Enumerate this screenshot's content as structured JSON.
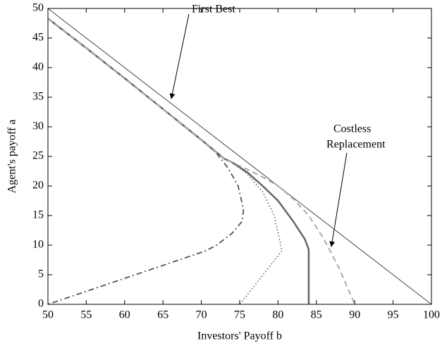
{
  "chart_data": {
    "type": "line",
    "xlabel": "Investors' Payoff b",
    "ylabel": "Agent's payoff a",
    "annotations": [
      "First Best",
      "Costless",
      "Replacement"
    ],
    "xlim": [
      50,
      100
    ],
    "ylim": [
      0,
      50
    ],
    "xticks": [
      50,
      55,
      60,
      65,
      70,
      75,
      80,
      85,
      90,
      95,
      100
    ],
    "yticks": [
      0,
      5,
      10,
      15,
      20,
      25,
      30,
      35,
      40,
      45,
      50
    ],
    "series": [
      {
        "color": "#444444",
        "width": 1,
        "dash": "solid",
        "x": [
          50,
          100
        ],
        "values": [
          50,
          0
        ]
      },
      {
        "color": "#555555",
        "width": 1.8,
        "dash": "dashdot",
        "x": [
          50,
          55,
          60,
          65,
          70,
          72,
          73.5,
          74.8,
          75.5,
          75.3,
          74,
          72,
          70.5,
          50
        ],
        "values": [
          48.3,
          43.3,
          38.2,
          33,
          27.8,
          25.5,
          23,
          20,
          16,
          14,
          12,
          10,
          9,
          0
        ]
      },
      {
        "color": "#555555",
        "width": 1.5,
        "dash": "dotted",
        "x": [
          50,
          55,
          60,
          65,
          70,
          73,
          74,
          76,
          78,
          79.5,
          80.2,
          80.5,
          75
        ],
        "values": [
          48.3,
          43.3,
          38.2,
          33,
          27.8,
          24.6,
          24,
          22,
          19,
          15,
          11,
          9,
          0
        ]
      },
      {
        "color": "#666666",
        "width": 2.5,
        "dash": "solid",
        "x": [
          50,
          55,
          60,
          65,
          70,
          73,
          74,
          76,
          78,
          80,
          82,
          83.5,
          84,
          84
        ],
        "values": [
          48.3,
          43.3,
          38.2,
          33,
          27.8,
          24.6,
          24,
          22.3,
          20,
          17.5,
          14,
          11,
          9.3,
          0
        ]
      },
      {
        "color": "#aaaaaa",
        "width": 2,
        "dash": "dashed",
        "x": [
          50,
          55,
          60,
          65,
          70,
          73,
          74,
          76,
          78,
          80,
          82,
          84,
          86,
          88,
          90
        ],
        "values": [
          48.3,
          43.3,
          38.2,
          33,
          27.8,
          24.6,
          24,
          22.8,
          21.5,
          20,
          17.8,
          15,
          11,
          6,
          0
        ]
      }
    ]
  }
}
